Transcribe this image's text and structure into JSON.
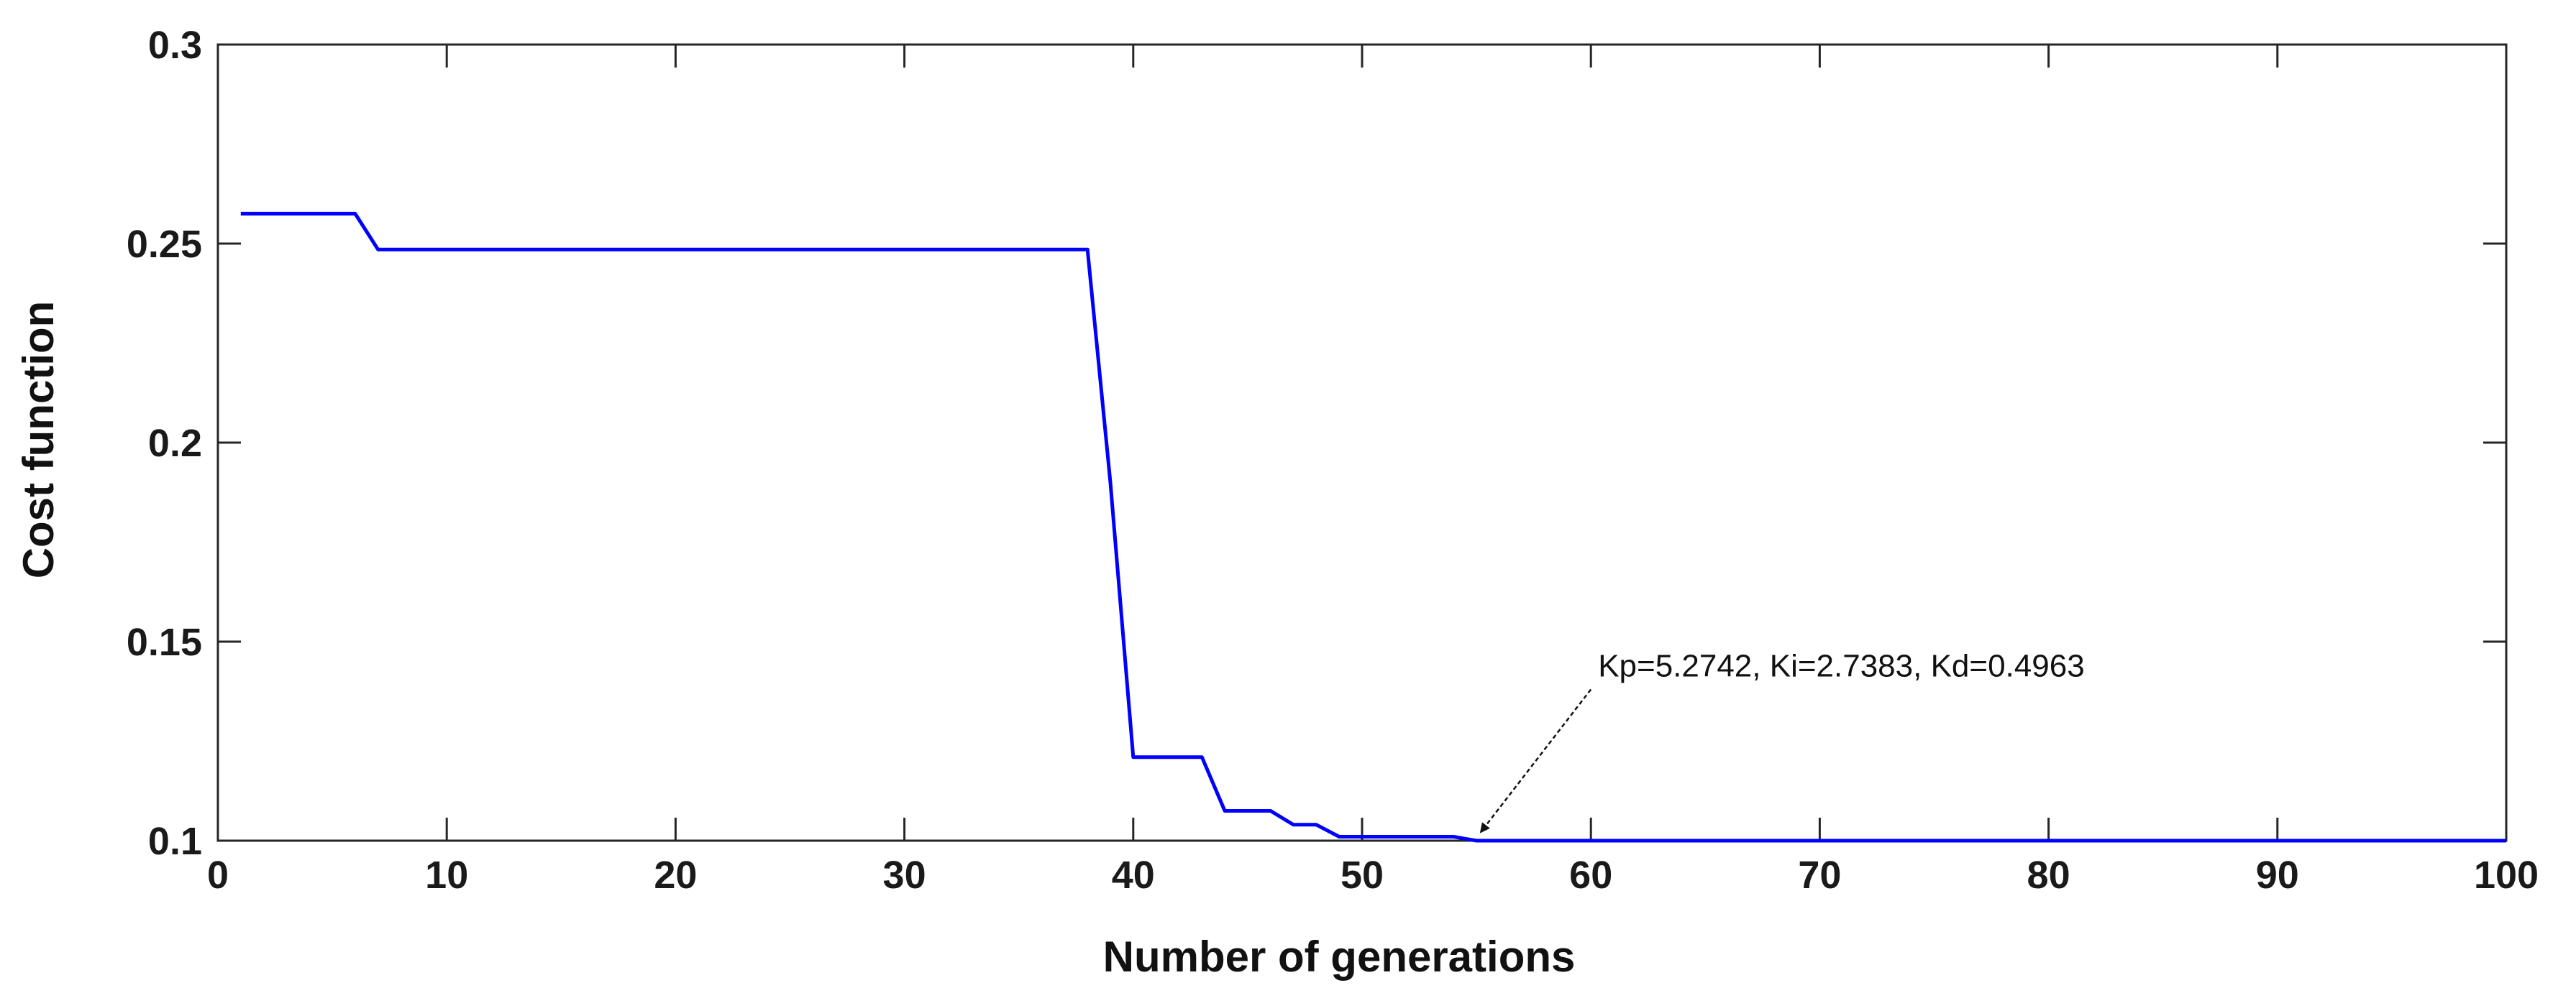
{
  "chart_data": {
    "type": "line",
    "xlabel": "Number of generations",
    "ylabel": "Cost function",
    "xlim": [
      0,
      100
    ],
    "ylim": [
      0.1,
      0.3
    ],
    "xticks": [
      0,
      10,
      20,
      30,
      40,
      50,
      60,
      70,
      80,
      90,
      100
    ],
    "yticks": [
      0.1,
      0.15,
      0.2,
      0.25,
      0.3
    ],
    "xtick_labels": [
      "0",
      "10",
      "20",
      "30",
      "40",
      "50",
      "60",
      "70",
      "80",
      "90",
      "100"
    ],
    "ytick_labels": [
      "0.1",
      "0.15",
      "0.2",
      "0.25",
      "0.3"
    ],
    "grid": false,
    "box": true,
    "series": [
      {
        "color": "#0000ff",
        "x": [
          1,
          6,
          7,
          38,
          39,
          40,
          43,
          44,
          46,
          47,
          48,
          49,
          50,
          54,
          55,
          100
        ],
        "y": [
          0.2575,
          0.2575,
          0.2485,
          0.2485,
          0.19,
          0.121,
          0.121,
          0.1075,
          0.1075,
          0.104,
          0.104,
          0.101,
          0.101,
          0.101,
          0.1,
          0.1
        ]
      }
    ],
    "annotations": [
      {
        "text": "Kp=5.2742, Ki=2.7383, Kd=0.4963",
        "arrow_to": [
          55,
          0.1
        ],
        "arrow_from": [
          60,
          0.138
        ]
      }
    ]
  }
}
